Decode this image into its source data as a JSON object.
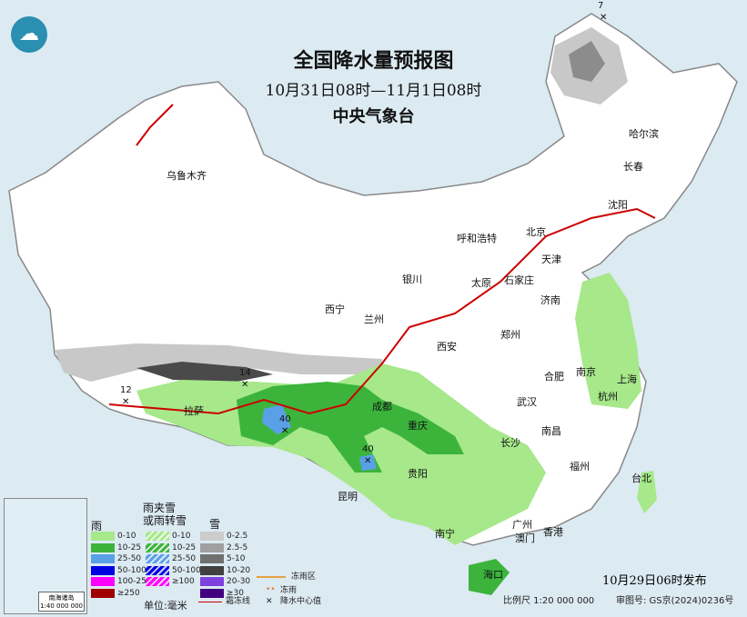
{
  "header": {
    "title": "全国降水量预报图",
    "period": "10月31日08时—11月1日08时",
    "agency": "中央气象台"
  },
  "colors": {
    "rain_light": "#a6e88a",
    "rain_mid": "#3cb43c",
    "rain_heavy": "#5aa0e6",
    "snow_light": "#c8c8c8",
    "snow_mid": "#8c8c8c",
    "snow_dark": "#4a4a4a",
    "frost_line": "#cc0000",
    "sea": "#dceaf2"
  },
  "cities": [
    {
      "name": "乌鲁木齐"
    },
    {
      "name": "哈尔滨"
    },
    {
      "name": "长春"
    },
    {
      "name": "沈阳"
    },
    {
      "name": "呼和浩特"
    },
    {
      "name": "北京"
    },
    {
      "name": "天津"
    },
    {
      "name": "石家庄"
    },
    {
      "name": "太原"
    },
    {
      "name": "银川"
    },
    {
      "name": "济南"
    },
    {
      "name": "西宁"
    },
    {
      "name": "兰州"
    },
    {
      "name": "郑州"
    },
    {
      "name": "西安"
    },
    {
      "name": "南京"
    },
    {
      "name": "合肥"
    },
    {
      "name": "上海"
    },
    {
      "name": "杭州"
    },
    {
      "name": "武汉"
    },
    {
      "name": "成都"
    },
    {
      "name": "拉萨"
    },
    {
      "name": "重庆"
    },
    {
      "name": "南昌"
    },
    {
      "name": "长沙"
    },
    {
      "name": "贵阳"
    },
    {
      "name": "福州"
    },
    {
      "name": "台北"
    },
    {
      "name": "昆明"
    },
    {
      "name": "南宁"
    },
    {
      "name": "广州"
    },
    {
      "name": "澳门"
    },
    {
      "name": "香港"
    },
    {
      "name": "海口"
    }
  ],
  "precip_centers": [
    "7",
    "12",
    "14",
    "40",
    "40"
  ],
  "legend": {
    "rain": {
      "title": "雨",
      "items": [
        "0-10",
        "10-25",
        "25-50",
        "50-100",
        "100-250",
        "≥250"
      ],
      "colors": [
        "#a6e88a",
        "#3cb43c",
        "#5aa0e6",
        "#0000e0",
        "#ff00ff",
        "#a00000"
      ]
    },
    "mixed": {
      "title": "雨夹雪\n或雨转雪",
      "items": [
        "0-10",
        "10-25",
        "25-50",
        "50-100",
        "≥100"
      ],
      "colors": [
        "#a6e88a",
        "#3cb43c",
        "#5aa0e6",
        "#0000e0",
        "#ff00ff"
      ]
    },
    "snow": {
      "title": "雪",
      "items": [
        "0-2.5",
        "2.5-5",
        "5-10",
        "10-20",
        "20-30",
        "≥30"
      ],
      "colors": [
        "#cccccc",
        "#a0a0a0",
        "#707070",
        "#404040",
        "#8040e0",
        "#400080"
      ]
    },
    "unit": "单位:毫米",
    "freezing_area": "冻雨区",
    "freezing_rain": "冻雨",
    "frost_line": "霜冻线",
    "center_value": "降水中心值"
  },
  "inset": {
    "title": "南海诸岛",
    "scale": "1:40 000 000"
  },
  "footer": {
    "issued": "10月29日06时发布",
    "scale": "比例尺 1:20 000 000",
    "map_no": "审图号: GS京(2024)0236号"
  }
}
